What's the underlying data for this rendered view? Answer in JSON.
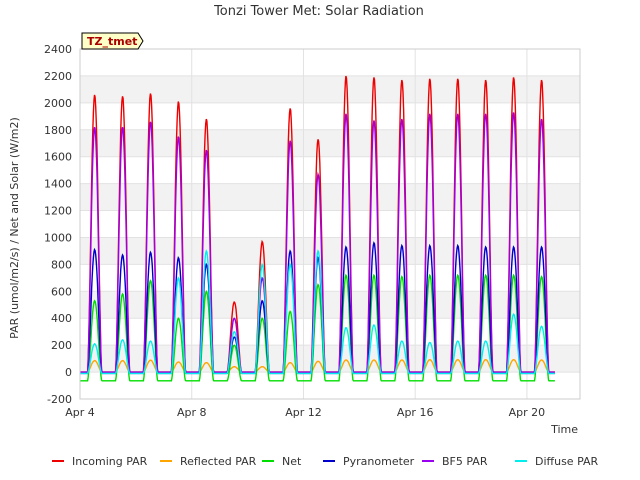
{
  "chart_data": {
    "type": "line",
    "title": "Tonzi Tower Met: Solar Radiation",
    "badge": "TZ_tmet",
    "xlabel": "Time",
    "ylabel": "PAR (umol/m2/s) / Net and Solar (W/m2)",
    "xlim": [
      4.0,
      21.9
    ],
    "ylim": [
      -200,
      2400
    ],
    "yticks": [
      -200,
      0,
      200,
      400,
      600,
      800,
      1000,
      1200,
      1400,
      1600,
      1800,
      2000,
      2200,
      2400
    ],
    "xticks": [
      {
        "value": 4,
        "label": "Apr 4"
      },
      {
        "value": 8,
        "label": "Apr 8"
      },
      {
        "value": 12,
        "label": "Apr 12"
      },
      {
        "value": 16,
        "label": "Apr 16"
      },
      {
        "value": 20,
        "label": "Apr 20"
      }
    ],
    "days": [
      4,
      5,
      6,
      7,
      8,
      9,
      10,
      11,
      12,
      13,
      14,
      15,
      16,
      17,
      18,
      19,
      20
    ],
    "series": [
      {
        "name": "Incoming PAR",
        "color": "#ee0000",
        "night": 0,
        "peaks": [
          2060,
          2050,
          2070,
          2010,
          1880,
          520,
          970,
          1960,
          1730,
          2200,
          2190,
          2170,
          2180,
          2180,
          2170,
          2190,
          2170
        ]
      },
      {
        "name": "Reflected PAR",
        "color": "#ffa500",
        "night": 0,
        "peaks": [
          85,
          85,
          88,
          75,
          70,
          40,
          40,
          70,
          80,
          90,
          90,
          90,
          92,
          92,
          92,
          92,
          90
        ]
      },
      {
        "name": "Net",
        "color": "#00dd00",
        "night": -65,
        "peaks": [
          530,
          580,
          680,
          400,
          600,
          200,
          400,
          450,
          650,
          720,
          720,
          710,
          720,
          720,
          720,
          720,
          710
        ]
      },
      {
        "name": "Pyranometer",
        "color": "#0000cc",
        "night": -10,
        "peaks": [
          910,
          870,
          890,
          850,
          800,
          260,
          530,
          900,
          850,
          930,
          960,
          940,
          940,
          940,
          930,
          930,
          930
        ]
      },
      {
        "name": "BF5 PAR",
        "color": "#9900ee",
        "night": 0,
        "peaks": [
          1820,
          1820,
          1860,
          1750,
          1650,
          400,
          700,
          1720,
          1470,
          1920,
          1870,
          1880,
          1920,
          1920,
          1920,
          1930,
          1880
        ]
      },
      {
        "name": "Diffuse PAR",
        "color": "#00eeee",
        "night": -10,
        "peaks": [
          210,
          240,
          230,
          700,
          900,
          300,
          800,
          800,
          900,
          330,
          350,
          230,
          220,
          230,
          230,
          430,
          340
        ]
      }
    ]
  }
}
